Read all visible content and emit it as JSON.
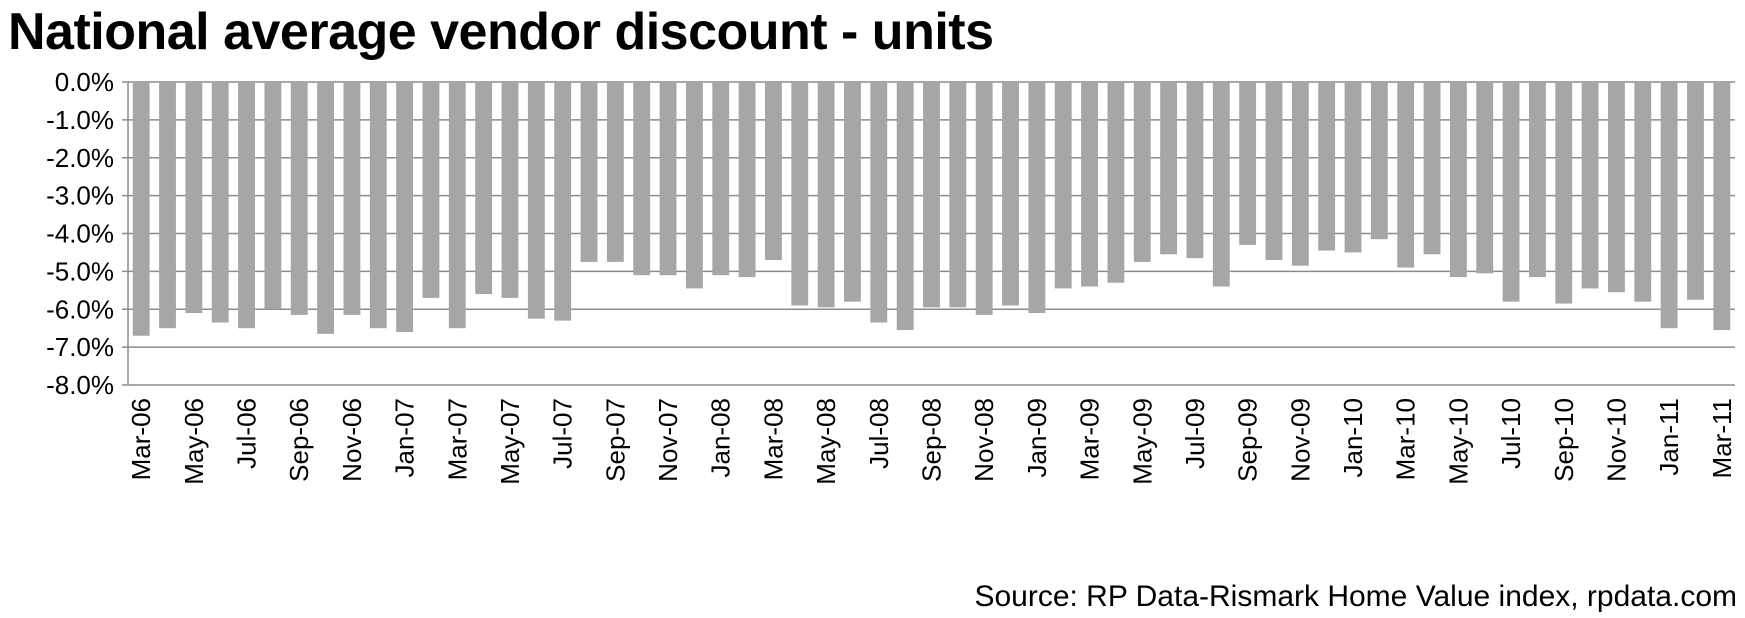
{
  "chart_data": {
    "type": "bar",
    "title": "National average vendor discount - units",
    "source": "Source: RP Data-Rismark Home Value index, rpdata.com",
    "xlabel": "",
    "ylabel": "",
    "ylim": [
      -8.0,
      0.0
    ],
    "y_ticks": [
      "0.0%",
      "-1.0%",
      "-2.0%",
      "-3.0%",
      "-4.0%",
      "-5.0%",
      "-6.0%",
      "-7.0%",
      "-8.0%"
    ],
    "x_tick_labels": [
      "Mar-06",
      "May-06",
      "Jul-06",
      "Sep-06",
      "Nov-06",
      "Jan-07",
      "Mar-07",
      "May-07",
      "Jul-07",
      "Sep-07",
      "Nov-07",
      "Jan-08",
      "Mar-08",
      "May-08",
      "Jul-08",
      "Sep-08",
      "Nov-08",
      "Jan-09",
      "Mar-09",
      "May-09",
      "Jul-09",
      "Sep-09",
      "Nov-09",
      "Jan-10",
      "Mar-10",
      "May-10",
      "Jul-10",
      "Sep-10",
      "Nov-10",
      "Jan-11",
      "Mar-11"
    ],
    "grid": true,
    "bar_color": "#a6a6a6",
    "categories": [
      "Mar-06",
      "Apr-06",
      "May-06",
      "Jun-06",
      "Jul-06",
      "Aug-06",
      "Sep-06",
      "Oct-06",
      "Nov-06",
      "Dec-06",
      "Jan-07",
      "Feb-07",
      "Mar-07",
      "Apr-07",
      "May-07",
      "Jun-07",
      "Jul-07",
      "Aug-07",
      "Sep-07",
      "Oct-07",
      "Nov-07",
      "Dec-07",
      "Jan-08",
      "Feb-08",
      "Mar-08",
      "Apr-08",
      "May-08",
      "Jun-08",
      "Jul-08",
      "Aug-08",
      "Sep-08",
      "Oct-08",
      "Nov-08",
      "Dec-08",
      "Jan-09",
      "Feb-09",
      "Mar-09",
      "Apr-09",
      "May-09",
      "Jun-09",
      "Jul-09",
      "Aug-09",
      "Sep-09",
      "Oct-09",
      "Nov-09",
      "Dec-09",
      "Jan-10",
      "Feb-10",
      "Mar-10",
      "Apr-10",
      "May-10",
      "Jun-10",
      "Jul-10",
      "Aug-10",
      "Sep-10",
      "Oct-10",
      "Nov-10",
      "Dec-10",
      "Jan-11",
      "Feb-11",
      "Mar-11"
    ],
    "values": [
      -6.7,
      -6.5,
      -6.1,
      -6.35,
      -6.5,
      -6.0,
      -6.15,
      -6.65,
      -6.15,
      -6.5,
      -6.6,
      -5.7,
      -6.5,
      -5.6,
      -5.7,
      -6.25,
      -6.3,
      -4.75,
      -4.75,
      -5.1,
      -5.1,
      -5.45,
      -5.1,
      -5.15,
      -4.7,
      -5.9,
      -5.95,
      -5.8,
      -6.35,
      -6.55,
      -5.95,
      -5.95,
      -6.15,
      -5.9,
      -6.1,
      -5.45,
      -5.4,
      -5.3,
      -4.75,
      -4.55,
      -4.65,
      -5.4,
      -4.3,
      -4.7,
      -4.85,
      -4.45,
      -4.5,
      -4.15,
      -4.9,
      -4.55,
      -5.15,
      -5.05,
      -5.8,
      -5.15,
      -5.85,
      -5.45,
      -5.55,
      -5.8,
      -6.5,
      -5.75,
      -6.55
    ]
  }
}
